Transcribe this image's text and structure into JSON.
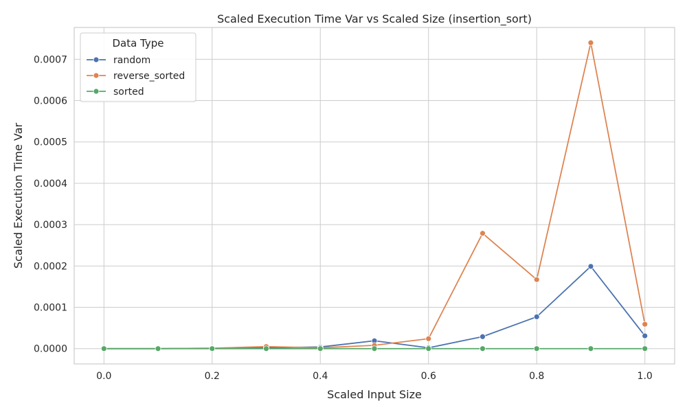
{
  "chart_data": {
    "type": "line",
    "title": "Scaled Execution Time Var vs Scaled Size (insertion_sort)",
    "xlabel": "Scaled Input Size",
    "ylabel": "Scaled Execution Time Var",
    "x": [
      0.0,
      0.1,
      0.2,
      0.3,
      0.4,
      0.5,
      0.6,
      0.7,
      0.8,
      0.9,
      1.0
    ],
    "xlim": [
      -0.055,
      1.055
    ],
    "ylim": [
      -3.7e-05,
      0.000777
    ],
    "x_ticks": [
      0.0,
      0.2,
      0.4,
      0.6,
      0.8,
      1.0
    ],
    "x_tick_labels": [
      "0.0",
      "0.2",
      "0.4",
      "0.6",
      "0.8",
      "1.0"
    ],
    "y_ticks": [
      0.0,
      0.0001,
      0.0002,
      0.0003,
      0.0004,
      0.0005,
      0.0006,
      0.0007
    ],
    "y_tick_labels": [
      "0.0000",
      "0.0001",
      "0.0002",
      "0.0003",
      "0.0004",
      "0.0005",
      "0.0006",
      "0.0007"
    ],
    "grid": true,
    "legend_title": "Data Type",
    "legend_position": "top-left",
    "series": [
      {
        "name": "random",
        "color": "#4c72b0",
        "values": [
          0.0,
          0.0,
          1e-06,
          2e-06,
          4e-06,
          1.9e-05,
          2e-06,
          2.9e-05,
          7.7e-05,
          0.000199,
          3.1e-05
        ]
      },
      {
        "name": "reverse_sorted",
        "color": "#dd8452",
        "values": [
          0.0,
          0.0,
          1e-06,
          5e-06,
          2e-06,
          8e-06,
          2.4e-05,
          0.000279,
          0.000167,
          0.00074,
          5.9e-05
        ]
      },
      {
        "name": "sorted",
        "color": "#55a868",
        "values": [
          0.0,
          0.0,
          0.0,
          0.0,
          0.0,
          0.0,
          0.0,
          0.0,
          0.0,
          0.0,
          0.0
        ]
      }
    ]
  }
}
